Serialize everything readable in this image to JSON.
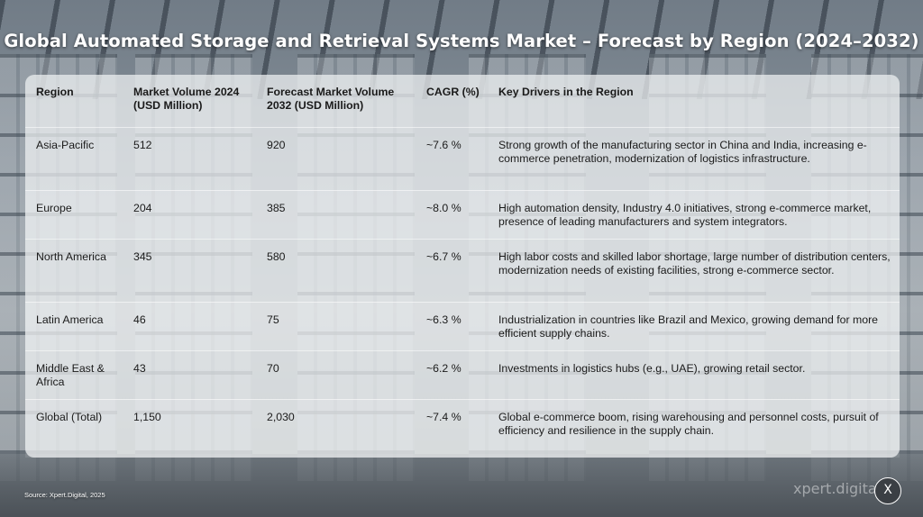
{
  "title": "Global Automated Storage and Retrieval Systems Market – Forecast by Region (2024–2032)",
  "source": "Source: Xpert.Digital, 2025",
  "logo_text": "xpert.digital",
  "close_label": "X",
  "chart_data": {
    "type": "table",
    "columns": [
      "Region",
      "Market Volume 2024 (USD Million)",
      "Forecast Market Volume 2032 (USD Million)",
      "CAGR (%)",
      "Key Drivers in the Region"
    ],
    "rows": [
      {
        "region": "Asia-Pacific",
        "v2024": "512",
        "v2032": "920",
        "cagr": "~7.6 %",
        "drivers": "Strong growth of the manufacturing sector in China and India, increasing e-commerce penetration, modernization of logistics infrastructure."
      },
      {
        "region": "Europe",
        "v2024": "204",
        "v2032": "385",
        "cagr": "~8.0 %",
        "drivers": "High automation density, Industry 4.0 initiatives, strong e-commerce market, presence of leading manufacturers and system integrators."
      },
      {
        "region": "North America",
        "v2024": "345",
        "v2032": "580",
        "cagr": "~6.7 %",
        "drivers": "High labor costs and skilled labor shortage, large number of distribution centers, modernization needs of existing facilities, strong e-commerce sector."
      },
      {
        "region": "Latin America",
        "v2024": "46",
        "v2032": "75",
        "cagr": "~6.3 %",
        "drivers": "Industrialization in countries like Brazil and Mexico, growing demand for more efficient supply chains."
      },
      {
        "region": "Middle East & Africa",
        "v2024": "43",
        "v2032": "70",
        "cagr": "~6.2 %",
        "drivers": "Investments in logistics hubs (e.g., UAE), growing retail sector."
      },
      {
        "region": "Global (Total)",
        "v2024": "1,150",
        "v2032": "2,030",
        "cagr": "~7.4 %",
        "drivers": "Global e-commerce boom, rising warehousing and personnel costs, pursuit of efficiency and resilience in the supply chain."
      }
    ]
  }
}
